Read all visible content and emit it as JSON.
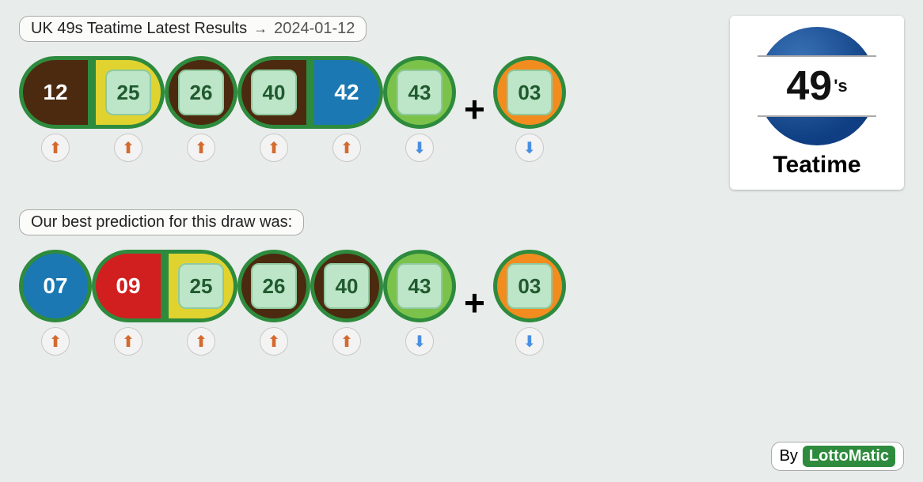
{
  "header": {
    "title": "UK 49s Teatime Latest Results",
    "arrow": "→",
    "date": "2024-01-12"
  },
  "prediction_label": "Our best prediction for this draw was:",
  "plus_sign": "+",
  "colors": {
    "brown_bg": "#4b2a10",
    "yellow_bg": "#e0d330",
    "blue_bg": "#1b78b3",
    "green_light_bg": "#7bc24a",
    "red_bg": "#d11f1f",
    "orange_bg": "#f28c1e",
    "border_green": "#2e8b3d",
    "sq_bg": "#bde5c8",
    "sq_border": "#8fc99e",
    "sq_text": "#205a2e",
    "white_text": "#ffffff"
  },
  "results": [
    {
      "value": "12",
      "bg": "brown_bg",
      "has_square": false,
      "text_color": "white_text",
      "shape": "flat-right",
      "trend": "up"
    },
    {
      "value": "25",
      "bg": "yellow_bg",
      "has_square": true,
      "shape": "flat-left",
      "trend": "up"
    },
    {
      "value": "26",
      "bg": "brown_bg",
      "has_square": true,
      "shape": "round",
      "trend": "up"
    },
    {
      "value": "40",
      "bg": "brown_bg",
      "has_square": true,
      "shape": "flat-right",
      "trend": "up"
    },
    {
      "value": "42",
      "bg": "blue_bg",
      "has_square": false,
      "text_color": "white_text",
      "shape": "flat-left",
      "trend": "up"
    },
    {
      "value": "43",
      "bg": "green_light_bg",
      "has_square": true,
      "shape": "round",
      "trend": "down"
    }
  ],
  "results_bonus": {
    "value": "03",
    "bg": "orange_bg",
    "has_square": true,
    "shape": "round",
    "trend": "down"
  },
  "predictions": [
    {
      "value": "07",
      "bg": "blue_bg",
      "has_square": false,
      "text_color": "white_text",
      "shape": "round",
      "trend": "up"
    },
    {
      "value": "09",
      "bg": "red_bg",
      "has_square": false,
      "text_color": "white_text",
      "shape": "flat-right",
      "trend": "up"
    },
    {
      "value": "25",
      "bg": "yellow_bg",
      "has_square": true,
      "shape": "flat-left",
      "trend": "up"
    },
    {
      "value": "26",
      "bg": "brown_bg",
      "has_square": true,
      "shape": "round",
      "trend": "up"
    },
    {
      "value": "40",
      "bg": "brown_bg",
      "has_square": true,
      "shape": "round",
      "trend": "up"
    },
    {
      "value": "43",
      "bg": "green_light_bg",
      "has_square": true,
      "shape": "round",
      "trend": "down"
    }
  ],
  "predictions_bonus": {
    "value": "03",
    "bg": "orange_bg",
    "has_square": true,
    "shape": "round",
    "trend": "down"
  },
  "logo": {
    "number": "49",
    "suffix": "'s",
    "subtitle": "Teatime"
  },
  "footer": {
    "by": "By",
    "brand": "LottoMatic"
  }
}
